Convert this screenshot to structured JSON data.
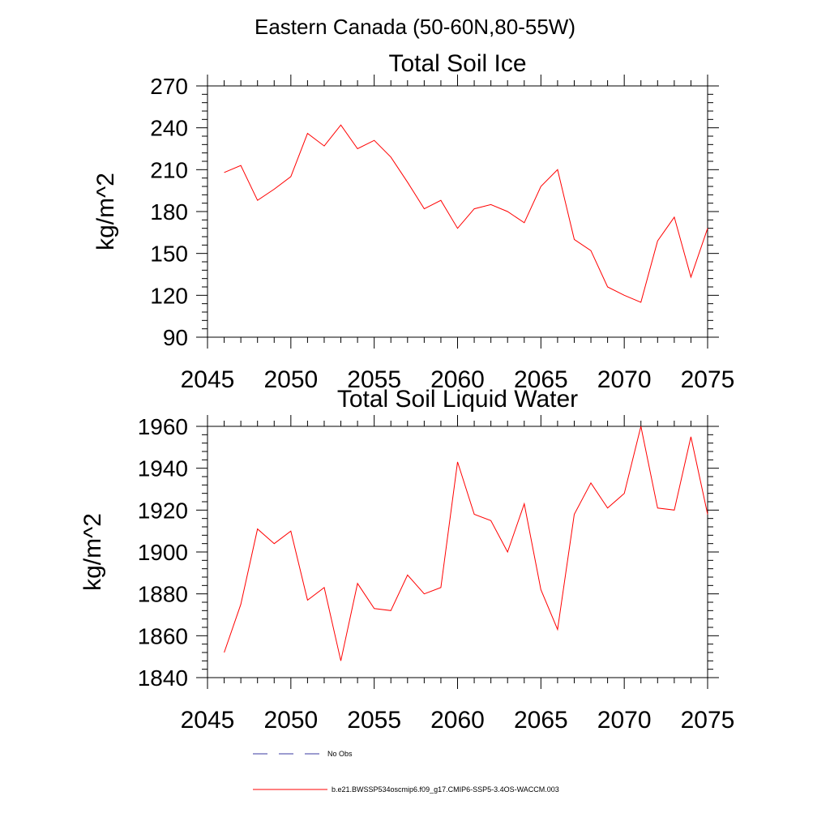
{
  "page_title": "Eastern Canada (50-60N,80-55W)",
  "colors": {
    "series": "#ff0000",
    "obs": "#3a3aa0",
    "axis": "#000000"
  },
  "legend": {
    "obs_label": "No Obs",
    "model_label": "b.e21.BWSSP534oscmip6.f09_g17.CMIP6-SSP5-3.4OS-WACCM.003"
  },
  "chart_data": [
    {
      "type": "line",
      "title": "Total Soil Ice",
      "xlabel": "",
      "ylabel": "kg/m^2",
      "xlim": [
        2045,
        2075
      ],
      "ylim": [
        90,
        270
      ],
      "xticks": [
        2045,
        2050,
        2055,
        2060,
        2065,
        2070,
        2075
      ],
      "yticks": [
        90,
        120,
        150,
        180,
        210,
        240,
        270
      ],
      "x": [
        2046,
        2047,
        2048,
        2049,
        2050,
        2051,
        2052,
        2053,
        2054,
        2055,
        2056,
        2057,
        2058,
        2059,
        2060,
        2061,
        2062,
        2063,
        2064,
        2065,
        2066,
        2067,
        2068,
        2069,
        2070,
        2071,
        2072,
        2073,
        2074,
        2075
      ],
      "series": [
        {
          "name": "b.e21.BWSSP534oscmip6.f09_g17.CMIP6-SSP5-3.4OS-WACCM.003",
          "values": [
            208,
            213,
            188,
            196,
            205,
            236,
            227,
            242,
            225,
            231,
            219,
            201,
            182,
            188,
            168,
            182,
            185,
            180,
            172,
            198,
            210,
            160,
            152,
            126,
            120,
            115,
            159,
            176,
            133,
            168
          ]
        }
      ]
    },
    {
      "type": "line",
      "title": "Total Soil Liquid Water",
      "xlabel": "",
      "ylabel": "kg/m^2",
      "xlim": [
        2045,
        2075
      ],
      "ylim": [
        1840,
        1960
      ],
      "xticks": [
        2045,
        2050,
        2055,
        2060,
        2065,
        2070,
        2075
      ],
      "yticks": [
        1840,
        1860,
        1880,
        1900,
        1920,
        1940,
        1960
      ],
      "x": [
        2046,
        2047,
        2048,
        2049,
        2050,
        2051,
        2052,
        2053,
        2054,
        2055,
        2056,
        2057,
        2058,
        2059,
        2060,
        2061,
        2062,
        2063,
        2064,
        2065,
        2066,
        2067,
        2068,
        2069,
        2070,
        2071,
        2072,
        2073,
        2074,
        2075
      ],
      "series": [
        {
          "name": "b.e21.BWSSP534oscmip6.f09_g17.CMIP6-SSP5-3.4OS-WACCM.003",
          "values": [
            1852,
            1875,
            1911,
            1904,
            1910,
            1877,
            1883,
            1848,
            1885,
            1873,
            1872,
            1889,
            1880,
            1883,
            1943,
            1918,
            1915,
            1900,
            1923,
            1882,
            1863,
            1918,
            1933,
            1921,
            1928,
            1960,
            1921,
            1920,
            1955,
            1918
          ]
        }
      ]
    }
  ]
}
